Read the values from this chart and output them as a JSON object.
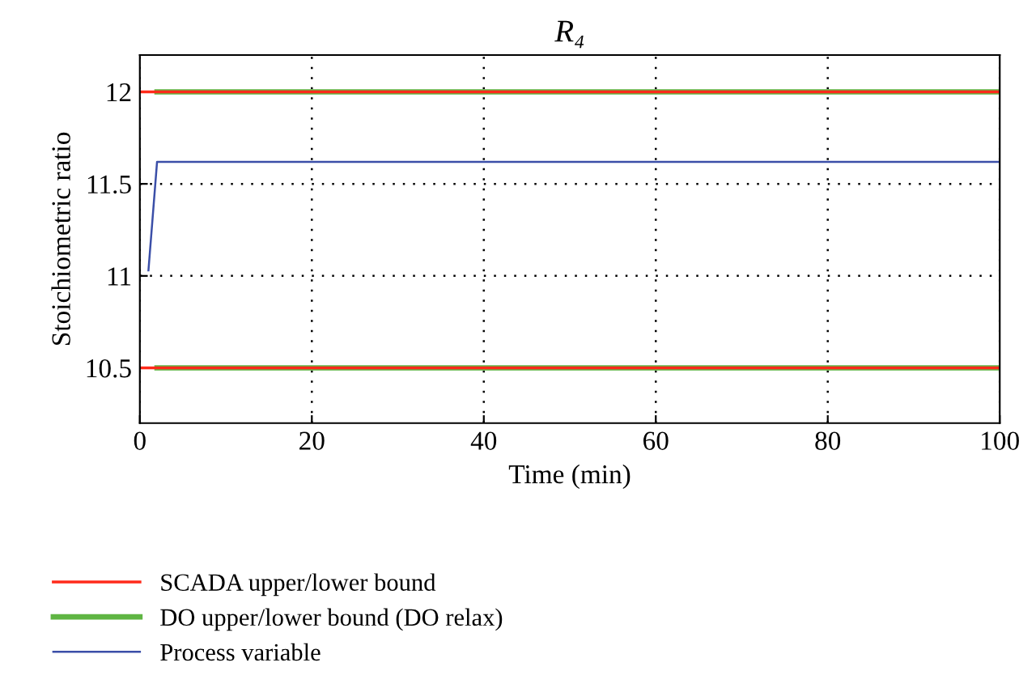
{
  "chart_data": {
    "type": "line",
    "title": "R₄",
    "xlabel": "Time (min)",
    "ylabel": "Stoichiometric ratio",
    "series": [
      {
        "name": "DO upper/lower bound (DO relax)",
        "color": "#5fb543",
        "x": [
          2,
          100
        ],
        "values": [
          12,
          12
        ]
      },
      {
        "color": "#5fb543",
        "x": [
          2,
          100
        ],
        "values": [
          10.5,
          10.5
        ]
      },
      {
        "name": "SCADA upper/lower bound",
        "color": "#ff2a1a",
        "x": [
          0,
          100
        ],
        "values": [
          12,
          12
        ]
      },
      {
        "color": "#ff2a1a",
        "x": [
          0,
          100
        ],
        "values": [
          10.5,
          10.5
        ]
      },
      {
        "name": "Process variable",
        "color": "#3b4fa8",
        "x": [
          1,
          2,
          100
        ],
        "values": [
          11.03,
          11.62,
          11.62
        ]
      }
    ],
    "xlim": [
      0,
      100
    ],
    "xticks": [
      0,
      20,
      40,
      60,
      80,
      100
    ],
    "ylim": [
      10.2,
      12.2
    ],
    "yticks": [
      10.5,
      11,
      11.5,
      12
    ],
    "grid": true,
    "line_style": "solid",
    "marker": "none",
    "legend": "bottom left"
  }
}
